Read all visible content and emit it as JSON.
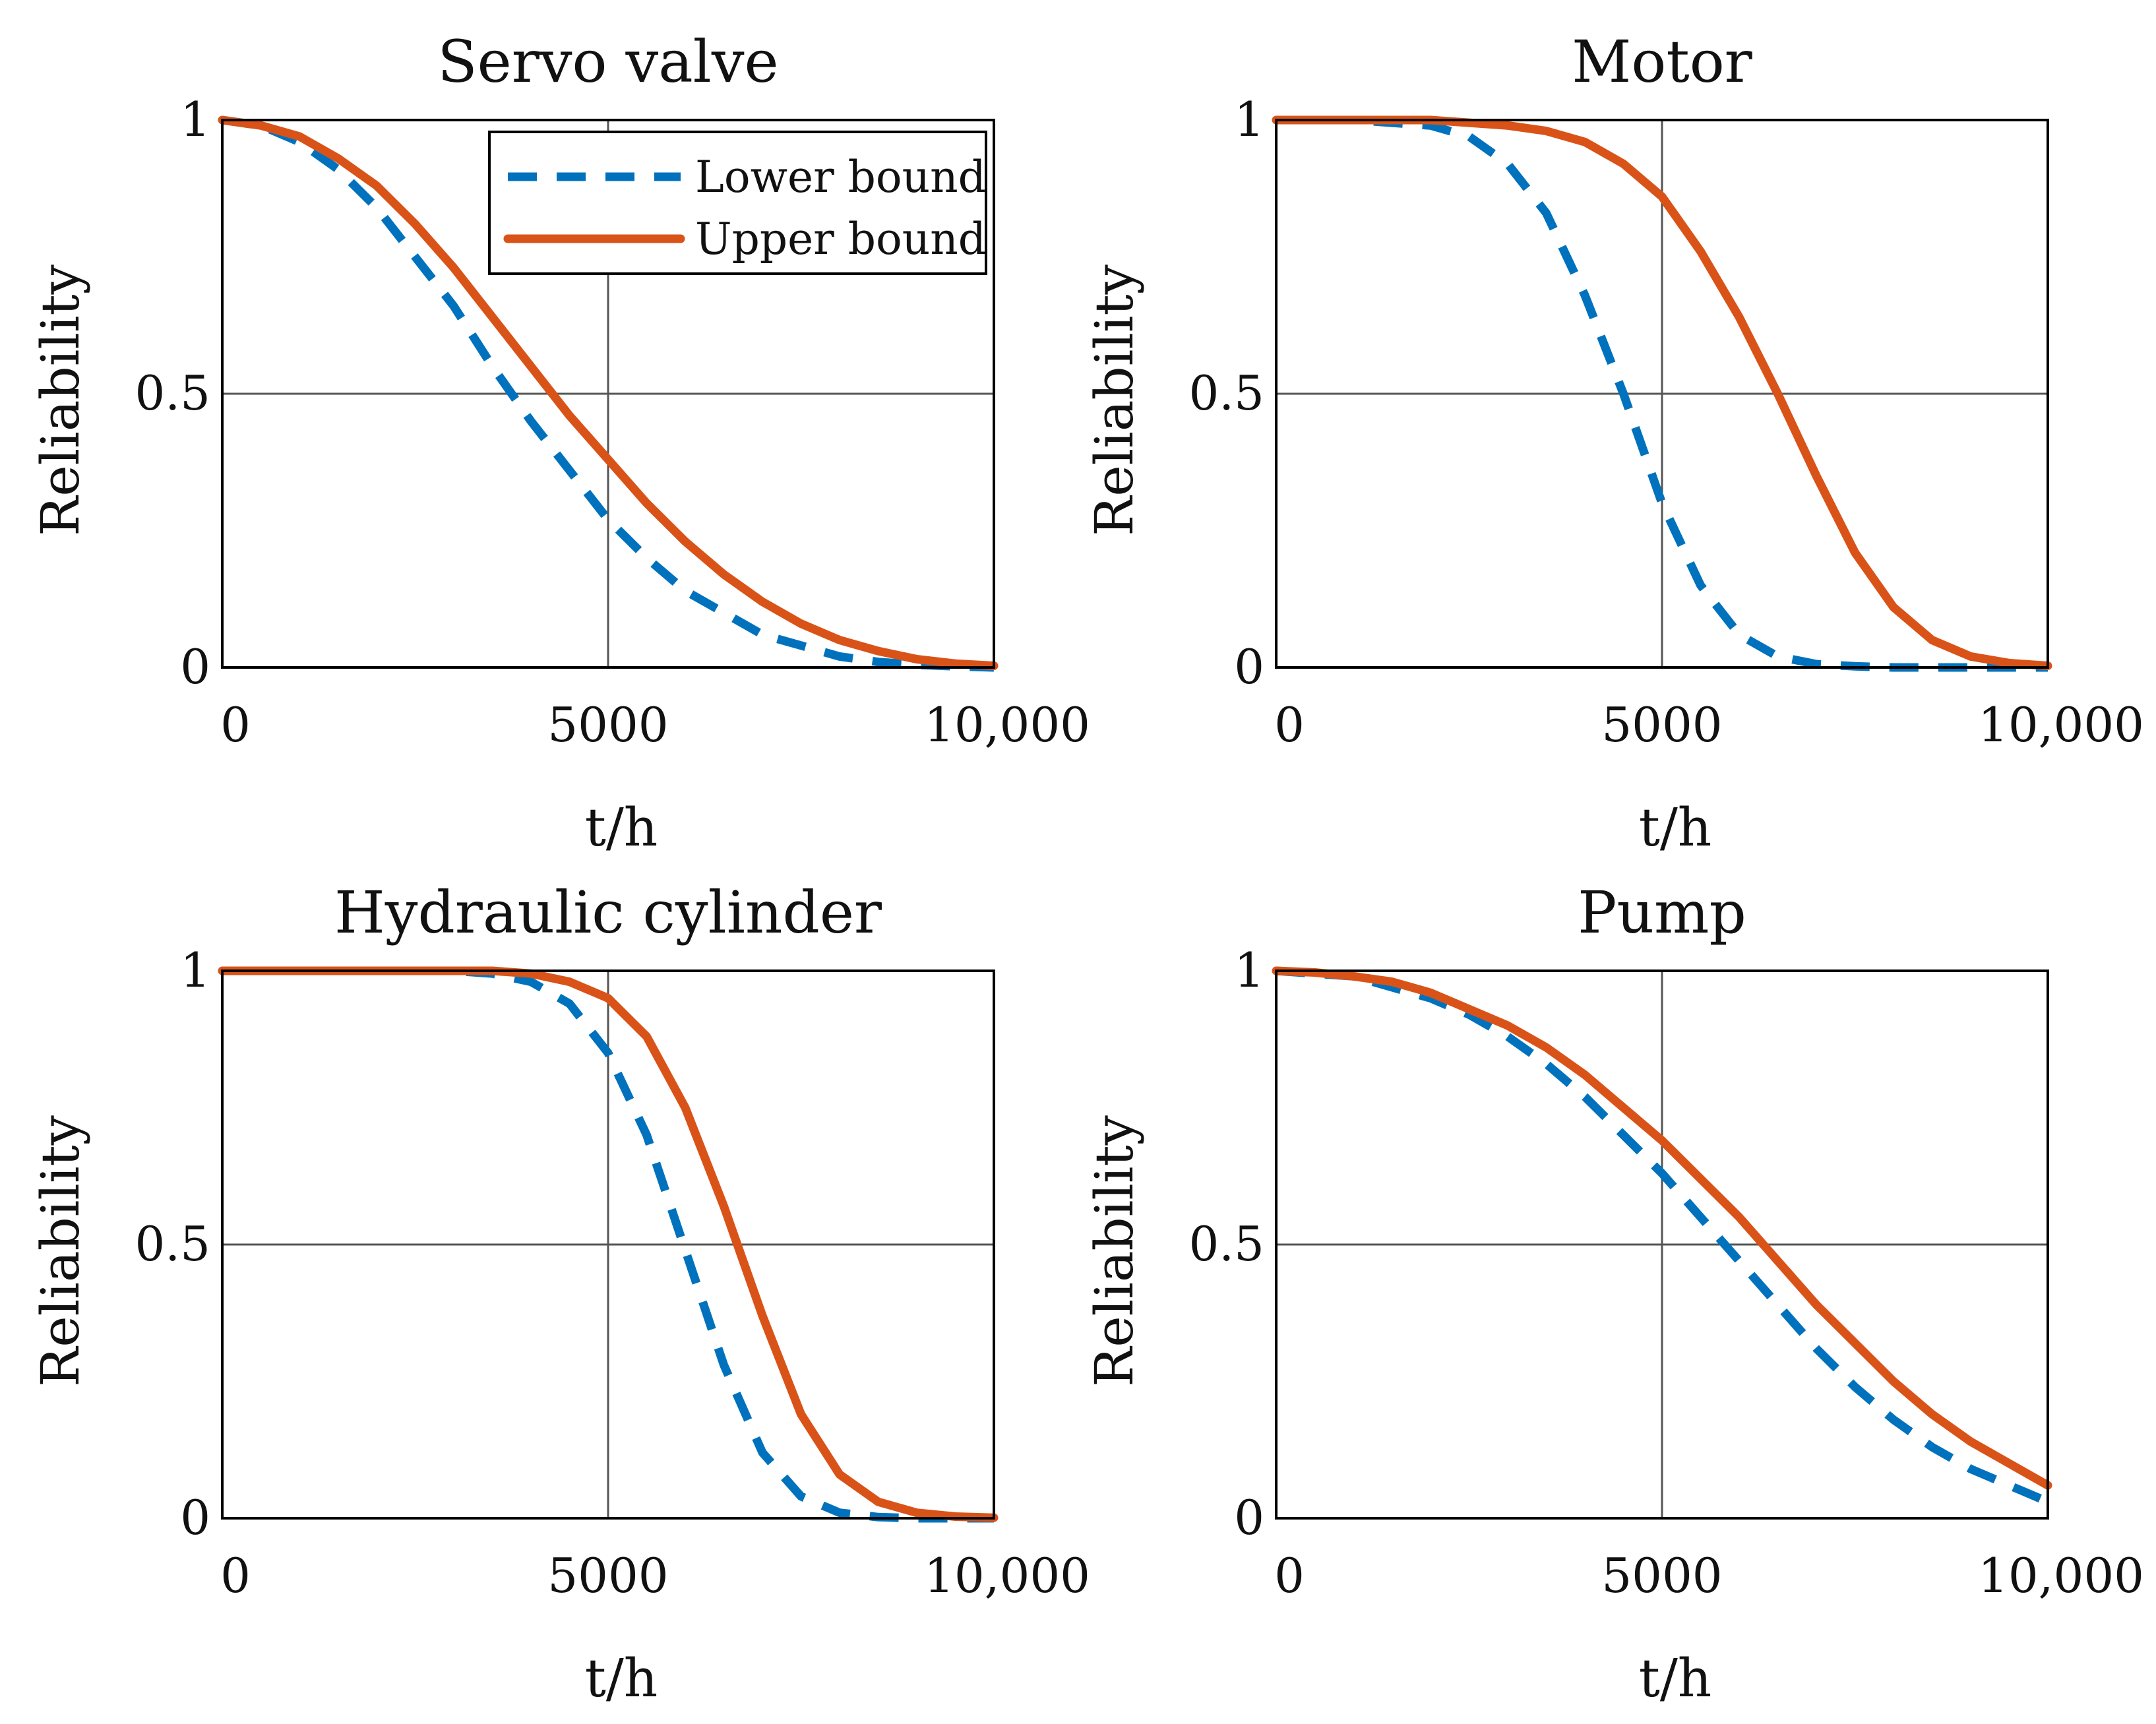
{
  "chart_data": [
    {
      "type": "line",
      "title": "Servo valve",
      "xlabel": "t/h",
      "ylabel": "Reliability",
      "xlim": [
        0,
        10000
      ],
      "ylim": [
        0,
        1
      ],
      "xticks": [
        "0",
        "5000",
        "10,000"
      ],
      "yticks": [
        "0",
        "0.5",
        "1"
      ],
      "grid": true,
      "legend": {
        "position": "top-right",
        "entries": [
          "Lower bound",
          "Upper bound"
        ]
      },
      "series": [
        {
          "name": "Lower bound",
          "style": "dashed",
          "color": "#0072BD",
          "x": [
            0,
            500,
            1000,
            1500,
            2000,
            2500,
            3000,
            3500,
            4000,
            4500,
            5000,
            5500,
            6000,
            6500,
            7000,
            7500,
            8000,
            8500,
            9000,
            9500,
            10000
          ],
          "y": [
            1.0,
            0.99,
            0.96,
            0.91,
            0.84,
            0.75,
            0.66,
            0.55,
            0.45,
            0.36,
            0.27,
            0.2,
            0.14,
            0.1,
            0.06,
            0.04,
            0.02,
            0.01,
            0.005,
            0.002,
            0.0
          ]
        },
        {
          "name": "Upper bound",
          "style": "solid",
          "color": "#D95319",
          "x": [
            0,
            500,
            1000,
            1500,
            2000,
            2500,
            3000,
            3500,
            4000,
            4500,
            5000,
            5500,
            6000,
            6500,
            7000,
            7500,
            8000,
            8500,
            9000,
            9500,
            10000
          ],
          "y": [
            1.0,
            0.99,
            0.97,
            0.93,
            0.88,
            0.81,
            0.73,
            0.64,
            0.55,
            0.46,
            0.38,
            0.3,
            0.23,
            0.17,
            0.12,
            0.08,
            0.05,
            0.03,
            0.015,
            0.007,
            0.003
          ]
        }
      ]
    },
    {
      "type": "line",
      "title": "Motor",
      "xlabel": "t/h",
      "ylabel": "Reliability",
      "xlim": [
        0,
        10000
      ],
      "ylim": [
        0,
        1
      ],
      "xticks": [
        "0",
        "5000",
        "10,000"
      ],
      "yticks": [
        "0",
        "0.5",
        "1"
      ],
      "grid": true,
      "series": [
        {
          "name": "Lower bound",
          "style": "dashed",
          "color": "#0072BD",
          "x": [
            0,
            500,
            1000,
            1500,
            2000,
            2500,
            3000,
            3500,
            4000,
            4500,
            5000,
            5500,
            6000,
            6500,
            7000,
            7500,
            8000,
            8500,
            9000,
            9500,
            10000
          ],
          "y": [
            1.0,
            1.0,
            1.0,
            0.995,
            0.99,
            0.97,
            0.92,
            0.83,
            0.68,
            0.5,
            0.3,
            0.15,
            0.06,
            0.02,
            0.006,
            0.002,
            0.0,
            0.0,
            0.0,
            0.0,
            0.0
          ]
        },
        {
          "name": "Upper bound",
          "style": "solid",
          "color": "#D95319",
          "x": [
            0,
            500,
            1000,
            1500,
            2000,
            2500,
            3000,
            3500,
            4000,
            4500,
            5000,
            5500,
            6000,
            6500,
            7000,
            7500,
            8000,
            8500,
            9000,
            9500,
            10000
          ],
          "y": [
            1.0,
            1.0,
            1.0,
            1.0,
            1.0,
            0.995,
            0.99,
            0.98,
            0.96,
            0.92,
            0.86,
            0.76,
            0.64,
            0.5,
            0.35,
            0.21,
            0.11,
            0.05,
            0.02,
            0.008,
            0.003
          ]
        }
      ]
    },
    {
      "type": "line",
      "title": "Hydraulic cylinder",
      "xlabel": "t/h",
      "ylabel": "Reliability",
      "xlim": [
        0,
        10000
      ],
      "ylim": [
        0,
        1
      ],
      "xticks": [
        "0",
        "5000",
        "10,000"
      ],
      "yticks": [
        "0",
        "0.5",
        "1"
      ],
      "grid": true,
      "series": [
        {
          "name": "Lower bound",
          "style": "dashed",
          "color": "#0072BD",
          "x": [
            0,
            500,
            1000,
            1500,
            2000,
            2500,
            3000,
            3500,
            4000,
            4500,
            5000,
            5500,
            6000,
            6500,
            7000,
            7500,
            8000,
            8500,
            9000,
            9500,
            10000
          ],
          "y": [
            1.0,
            1.0,
            1.0,
            1.0,
            1.0,
            1.0,
            1.0,
            0.995,
            0.98,
            0.94,
            0.85,
            0.7,
            0.49,
            0.28,
            0.12,
            0.04,
            0.01,
            0.002,
            0.0,
            0.0,
            0.0
          ]
        },
        {
          "name": "Upper bound",
          "style": "solid",
          "color": "#D95319",
          "x": [
            0,
            500,
            1000,
            1500,
            2000,
            2500,
            3000,
            3500,
            4000,
            4500,
            5000,
            5500,
            6000,
            6500,
            7000,
            7500,
            8000,
            8500,
            9000,
            9500,
            10000
          ],
          "y": [
            1.0,
            1.0,
            1.0,
            1.0,
            1.0,
            1.0,
            1.0,
            1.0,
            0.995,
            0.98,
            0.95,
            0.88,
            0.75,
            0.57,
            0.37,
            0.19,
            0.08,
            0.03,
            0.01,
            0.003,
            0.001
          ]
        }
      ]
    },
    {
      "type": "line",
      "title": "Pump",
      "xlabel": "t/h",
      "ylabel": "Reliability",
      "xlim": [
        0,
        10000
      ],
      "ylim": [
        0,
        1
      ],
      "xticks": [
        "0",
        "5000",
        "10,000"
      ],
      "yticks": [
        "0",
        "0.5",
        "1"
      ],
      "grid": true,
      "series": [
        {
          "name": "Lower bound",
          "style": "dashed",
          "color": "#0072BD",
          "x": [
            0,
            500,
            1000,
            1500,
            2000,
            2500,
            3000,
            3500,
            4000,
            4500,
            5000,
            5500,
            6000,
            6500,
            7000,
            7500,
            8000,
            8500,
            9000,
            9500,
            10000
          ],
          "y": [
            1.0,
            0.995,
            0.99,
            0.97,
            0.95,
            0.92,
            0.88,
            0.83,
            0.77,
            0.7,
            0.63,
            0.55,
            0.47,
            0.39,
            0.31,
            0.24,
            0.18,
            0.13,
            0.09,
            0.06,
            0.03
          ]
        },
        {
          "name": "Upper bound",
          "style": "solid",
          "color": "#D95319",
          "x": [
            0,
            500,
            1000,
            1500,
            2000,
            2500,
            3000,
            3500,
            4000,
            4500,
            5000,
            5500,
            6000,
            6500,
            7000,
            7500,
            8000,
            8500,
            9000,
            9500,
            10000
          ],
          "y": [
            1.0,
            0.997,
            0.99,
            0.98,
            0.96,
            0.93,
            0.9,
            0.86,
            0.81,
            0.75,
            0.69,
            0.62,
            0.55,
            0.47,
            0.39,
            0.32,
            0.25,
            0.19,
            0.14,
            0.1,
            0.06
          ]
        }
      ]
    }
  ]
}
